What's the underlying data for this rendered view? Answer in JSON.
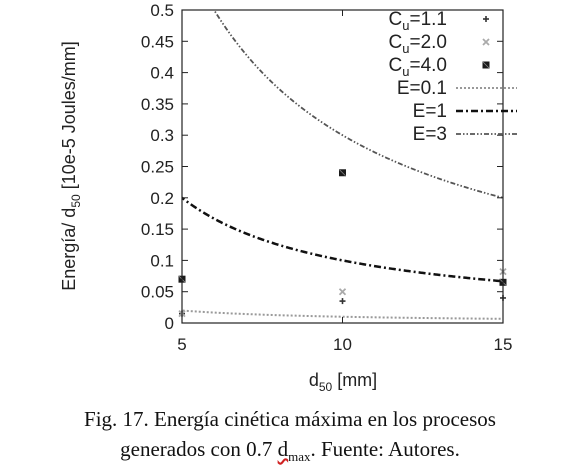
{
  "chart_data": {
    "type": "scatter",
    "xlabel": "d50 [mm]",
    "ylabel": "Energía/ d50 [10e-5 Joules/mm]",
    "xlim": [
      5,
      15
    ],
    "ylim": [
      0,
      0.5
    ],
    "x_ticks": [
      5,
      10,
      15
    ],
    "y_ticks": [
      0,
      0.05,
      0.1,
      0.15,
      0.2,
      0.25,
      0.3,
      0.35,
      0.4,
      0.45,
      0.5
    ],
    "grid": false,
    "legend_position": "top-right",
    "series": [
      {
        "name": "Cu=1.1",
        "name_main": "C",
        "name_sub": "u",
        "name_rest": "=1.1",
        "kind": "points",
        "marker": "plus",
        "color": "#333333",
        "points": [
          [
            5,
            0.015
          ],
          [
            10,
            0.035
          ],
          [
            15,
            0.04
          ]
        ]
      },
      {
        "name": "Cu=2.0",
        "name_main": "C",
        "name_sub": "u",
        "name_rest": "=2.0",
        "kind": "points",
        "marker": "cross",
        "color": "#aaaaaa",
        "points": [
          [
            5,
            0.015
          ],
          [
            10,
            0.05
          ],
          [
            15,
            0.082
          ]
        ]
      },
      {
        "name": "Cu=4.0",
        "name_main": "C",
        "name_sub": "u",
        "name_rest": "=4.0",
        "kind": "points",
        "marker": "square",
        "color": "#1a1a1a",
        "points": [
          [
            5,
            0.07
          ],
          [
            10,
            0.24
          ],
          [
            15,
            0.065
          ]
        ]
      },
      {
        "name": "E=0.1",
        "name_main": "E=0.1",
        "name_sub": "",
        "name_rest": "",
        "kind": "curve",
        "k": 0.1,
        "color": "#999999",
        "dash": "2,2",
        "width": 2
      },
      {
        "name": "E=1",
        "name_main": "E=1",
        "name_sub": "",
        "name_rest": "",
        "kind": "curve",
        "k": 1,
        "color": "#111111",
        "dash": "7,3,2,3",
        "width": 2.5
      },
      {
        "name": "E=3",
        "name_main": "E=3",
        "name_sub": "",
        "name_rest": "",
        "kind": "curve",
        "k": 3,
        "color": "#555555",
        "dash": "5,2,1.5,2,1.5,2",
        "width": 1.8
      }
    ]
  },
  "axis_label_parts": {
    "x": {
      "pre": "d",
      "sub": "50",
      "post": " [mm]"
    },
    "y": {
      "pre": "Energía/ d",
      "sub": "50",
      "post": " [10e-5 Joules/mm]"
    }
  },
  "caption": {
    "line1": "Fig. 17. Energía cinética máxima en los procesos",
    "line2_pre": "generados con 0.7 ",
    "line2_d": "d",
    "line2_sub": "max",
    "line2_post": ". Fuente: Autores."
  }
}
